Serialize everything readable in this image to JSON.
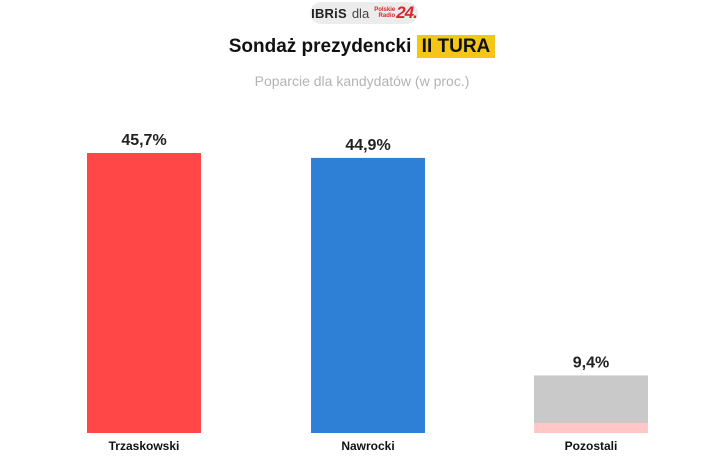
{
  "source": {
    "pollster": "IBRiS",
    "connector": "dla",
    "logo_words": [
      "Polskie",
      "Radio"
    ],
    "logo_number": "24."
  },
  "header": {
    "title_main": "Sondaż prezydencki",
    "title_highlight": "II TURA",
    "subtitle": "Poparcie dla kandydatów (w proc.)"
  },
  "colors": {
    "trzaskowski": "#ff4747",
    "nawrocki": "#2e7fd6",
    "pozostali": "#c9c9c9",
    "pozostali_accent": "#ffc7c7",
    "highlight": "#f5c518"
  },
  "chart_data": {
    "type": "bar",
    "categories": [
      "Trzaskowski",
      "Nawrocki",
      "Pozostali"
    ],
    "values": [
      45.7,
      44.9,
      9.4
    ],
    "value_labels": [
      "45,7%",
      "44,9%",
      "9,4%"
    ],
    "title": "Sondaż prezydencki II TURA",
    "subtitle": "Poparcie dla kandydatów (w proc.)",
    "xlabel": "",
    "ylabel": "",
    "ylim": [
      0,
      45.7
    ],
    "grid": false,
    "legend": "none"
  }
}
